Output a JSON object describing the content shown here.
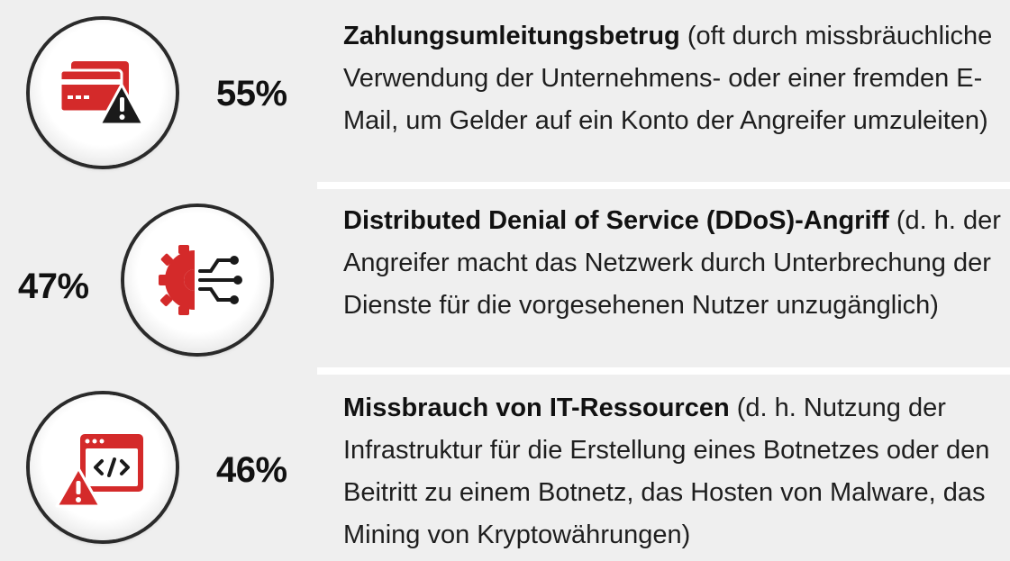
{
  "items": [
    {
      "percent": "55%",
      "title": "Zahlungsumleitungsbetrug",
      "text": " (oft durch missbräuchliche Verwendung der Unternehmens- oder einer fremden E-Mail, um Gelder auf ein Konto der Angreifer umzuleiten)",
      "icon": "credit-card-warning-icon"
    },
    {
      "percent": "47%",
      "title": "Distributed Denial of Service (DDoS)-Angriff",
      "text": " (d. h. der Angreifer macht das Netzwerk durch Unterbrechung der Dienste für die vorgesehenen Nutzer unzugänglich)",
      "icon": "gear-network-icon"
    },
    {
      "percent": "46%",
      "title": "Missbrauch von IT-Ressourcen",
      "text": " (d. h. Nutzung der Infrastruktur für die Erstellung eines Botnetzes oder den Beitritt zu einem Botnetz, das Hosten von Malware, das Mining von Kryptowährungen)",
      "icon": "code-window-warning-icon"
    }
  ],
  "colors": {
    "accent": "#d42a2a",
    "dark": "#1a1a1a",
    "background": "#efefef"
  }
}
